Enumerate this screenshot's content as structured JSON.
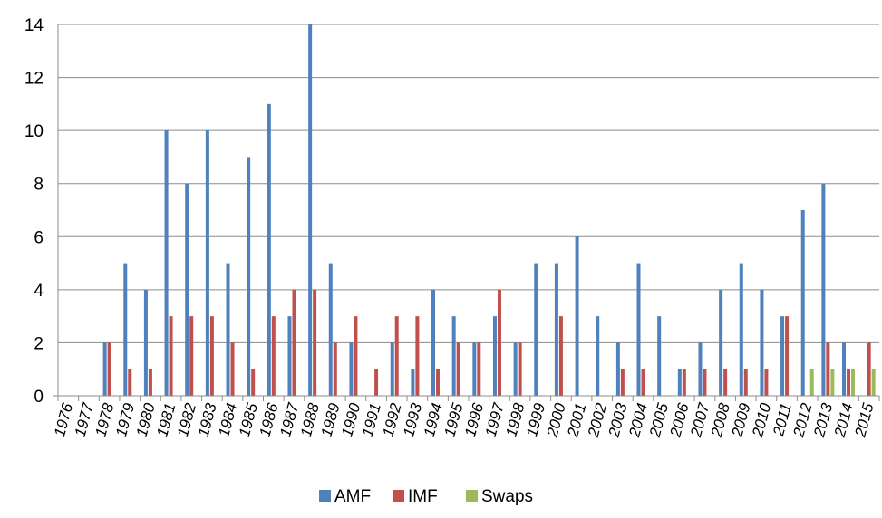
{
  "chart_data": {
    "type": "bar",
    "categories": [
      "1976",
      "1977",
      "1978",
      "1979",
      "1980",
      "1981",
      "1982",
      "1983",
      "1984",
      "1985",
      "1986",
      "1987",
      "1988",
      "1989",
      "1990",
      "1991",
      "1992",
      "1993",
      "1994",
      "1995",
      "1996",
      "1997",
      "1998",
      "1999",
      "2000",
      "2001",
      "2002",
      "2003",
      "2004",
      "2005",
      "2006",
      "2007",
      "2008",
      "2009",
      "2010",
      "2011",
      "2012",
      "2013",
      "2014",
      "2015"
    ],
    "series": [
      {
        "name": "AMF",
        "color": "#4F81BD",
        "values": [
          0,
          0,
          2,
          5,
          4,
          10,
          8,
          10,
          5,
          9,
          11,
          3,
          14,
          5,
          2,
          0,
          2,
          1,
          4,
          3,
          2,
          3,
          2,
          5,
          5,
          6,
          3,
          2,
          5,
          3,
          1,
          2,
          4,
          5,
          4,
          3,
          7,
          8,
          2,
          0
        ]
      },
      {
        "name": "IMF",
        "color": "#C0504D",
        "values": [
          0,
          0,
          2,
          1,
          1,
          3,
          3,
          3,
          2,
          1,
          3,
          4,
          4,
          2,
          3,
          1,
          3,
          3,
          1,
          2,
          2,
          4,
          2,
          0,
          3,
          0,
          0,
          1,
          1,
          0,
          1,
          1,
          1,
          1,
          1,
          3,
          0,
          2,
          1,
          2
        ]
      },
      {
        "name": "Swaps",
        "color": "#9BBB59",
        "values": [
          0,
          0,
          0,
          0,
          0,
          0,
          0,
          0,
          0,
          0,
          0,
          0,
          0,
          0,
          0,
          0,
          0,
          0,
          0,
          0,
          0,
          0,
          0,
          0,
          0,
          0,
          0,
          0,
          0,
          0,
          0,
          0,
          0,
          0,
          0,
          0,
          1,
          1,
          1,
          1
        ]
      }
    ],
    "ylim": [
      0,
      14
    ],
    "yticks": [
      0,
      2,
      4,
      6,
      8,
      10,
      12,
      14
    ],
    "grid": true,
    "legend": "bottom-center"
  }
}
